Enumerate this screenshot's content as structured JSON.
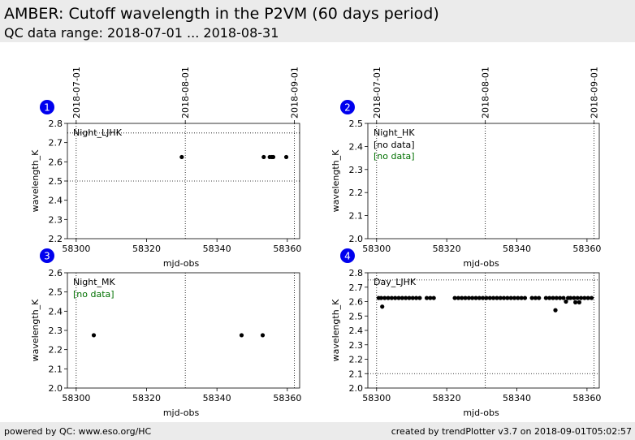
{
  "header": {
    "title": "AMBER: Cutoff wavelength in the P2VM (60 days period)",
    "subtitle": "QC data range: 2018-07-01 ... 2018-08-31"
  },
  "footer": {
    "left": "powered by QC: www.eso.org/HC",
    "right": "created by trendPlotter v3.7 on 2018-09-01T05:02:57"
  },
  "colors": {
    "badge": "#0000ee",
    "no_data": "#007000",
    "points": "#000000",
    "header_bg": "#ebebeb"
  },
  "chart_data": [
    {
      "type": "scatter",
      "badge": "1",
      "label": "Night_LJHK",
      "no_data": "",
      "xlabel": "mjd-obs",
      "ylabel": "wavelength_K",
      "xlim": [
        58297.5,
        58363.5
      ],
      "ylim": [
        2.2,
        2.8
      ],
      "xticks": [
        58300,
        58320,
        58340,
        58360
      ],
      "yticks": [
        2.2,
        2.3,
        2.4,
        2.5,
        2.6,
        2.7,
        2.8
      ],
      "date_ticks": [
        {
          "x": 58300,
          "label": "2018-07-01"
        },
        {
          "x": 58331,
          "label": "2018-08-01"
        },
        {
          "x": 58362,
          "label": "2018-09-01"
        }
      ],
      "hlines": [
        2.5,
        2.75
      ],
      "points": [
        [
          58330.0,
          2.625
        ],
        [
          58353.3,
          2.625
        ],
        [
          58355.0,
          2.625
        ],
        [
          58355.6,
          2.625
        ],
        [
          58356.0,
          2.625
        ],
        [
          58359.7,
          2.625
        ]
      ]
    },
    {
      "type": "scatter",
      "badge": "2",
      "label": "Night_HK",
      "no_data": "[no data]",
      "no_data_green": "[no data]",
      "xlabel": "mjd-obs",
      "ylabel": "wavelength_K",
      "xlim": [
        58297.5,
        58363.5
      ],
      "ylim": [
        2.0,
        2.5
      ],
      "xticks": [
        58300,
        58320,
        58340,
        58360
      ],
      "yticks": [
        2.0,
        2.1,
        2.2,
        2.3,
        2.4,
        2.5
      ],
      "date_ticks": [
        {
          "x": 58300,
          "label": "2018-07-01"
        },
        {
          "x": 58331,
          "label": "2018-08-01"
        },
        {
          "x": 58362,
          "label": "2018-09-01"
        }
      ],
      "hlines": [],
      "points": []
    },
    {
      "type": "scatter",
      "badge": "3",
      "label": "Night_MK",
      "no_data": "",
      "no_data_green": "[no data]",
      "xlabel": "mjd-obs",
      "ylabel": "wavelength_K",
      "xlim": [
        58297.5,
        58363.5
      ],
      "ylim": [
        2.0,
        2.6
      ],
      "xticks": [
        58300,
        58320,
        58340,
        58360
      ],
      "yticks": [
        2.0,
        2.1,
        2.2,
        2.3,
        2.4,
        2.5,
        2.6
      ],
      "date_ticks": [],
      "hlines": [],
      "points": [
        [
          58305.0,
          2.275
        ],
        [
          58347.0,
          2.275
        ],
        [
          58353.0,
          2.275
        ]
      ]
    },
    {
      "type": "scatter",
      "badge": "4",
      "label": "Day_LJHK",
      "no_data": "",
      "xlabel": "mjd-obs",
      "ylabel": "wavelength_K",
      "xlim": [
        58297.5,
        58363.5
      ],
      "ylim": [
        2.0,
        2.8
      ],
      "xticks": [
        58300,
        58320,
        58340,
        58360
      ],
      "yticks": [
        2.0,
        2.1,
        2.2,
        2.3,
        2.4,
        2.5,
        2.6,
        2.7,
        2.8
      ],
      "date_ticks": [],
      "hlines": [
        2.1,
        2.75
      ],
      "points": [
        [
          58300.6,
          2.625
        ],
        [
          58301.3,
          2.625
        ],
        [
          58301.6,
          2.565
        ],
        [
          58302.3,
          2.625
        ],
        [
          58303.3,
          2.625
        ],
        [
          58304.3,
          2.625
        ],
        [
          58305.3,
          2.625
        ],
        [
          58306.3,
          2.625
        ],
        [
          58307.3,
          2.625
        ],
        [
          58308.3,
          2.625
        ],
        [
          58309.3,
          2.625
        ],
        [
          58310.3,
          2.625
        ],
        [
          58311.3,
          2.625
        ],
        [
          58312.3,
          2.625
        ],
        [
          58314.3,
          2.625
        ],
        [
          58315.3,
          2.625
        ],
        [
          58316.3,
          2.625
        ],
        [
          58322.3,
          2.625
        ],
        [
          58323.3,
          2.625
        ],
        [
          58324.3,
          2.625
        ],
        [
          58325.3,
          2.625
        ],
        [
          58326.3,
          2.625
        ],
        [
          58327.3,
          2.625
        ],
        [
          58328.3,
          2.625
        ],
        [
          58329.3,
          2.625
        ],
        [
          58330.3,
          2.625
        ],
        [
          58331.3,
          2.625
        ],
        [
          58332.3,
          2.625
        ],
        [
          58333.3,
          2.625
        ],
        [
          58334.3,
          2.625
        ],
        [
          58335.3,
          2.625
        ],
        [
          58336.3,
          2.625
        ],
        [
          58337.3,
          2.625
        ],
        [
          58338.3,
          2.625
        ],
        [
          58339.3,
          2.625
        ],
        [
          58340.3,
          2.625
        ],
        [
          58341.3,
          2.625
        ],
        [
          58342.3,
          2.625
        ],
        [
          58344.3,
          2.625
        ],
        [
          58345.3,
          2.625
        ],
        [
          58346.3,
          2.625
        ],
        [
          58348.3,
          2.625
        ],
        [
          58349.3,
          2.625
        ],
        [
          58350.3,
          2.625
        ],
        [
          58351.0,
          2.54
        ],
        [
          58351.3,
          2.625
        ],
        [
          58352.3,
          2.625
        ],
        [
          58353.3,
          2.625
        ],
        [
          58354.0,
          2.6
        ],
        [
          58354.6,
          2.625
        ],
        [
          58355.3,
          2.625
        ],
        [
          58356.3,
          2.625
        ],
        [
          58356.7,
          2.595
        ],
        [
          58357.3,
          2.625
        ],
        [
          58357.8,
          2.595
        ],
        [
          58358.3,
          2.625
        ],
        [
          58359.3,
          2.625
        ],
        [
          58360.3,
          2.625
        ],
        [
          58361.3,
          2.625
        ]
      ]
    }
  ]
}
